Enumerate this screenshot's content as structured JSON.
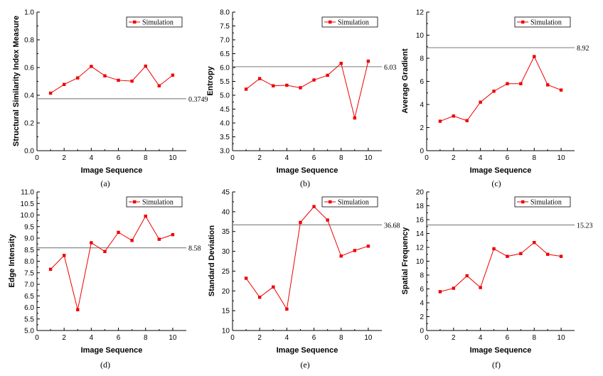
{
  "chart_data": [
    {
      "type": "line",
      "caption": "(a)",
      "xlabel": "Image Sequence",
      "ylabel": "Structural Similarity Index Measure",
      "xlim": [
        0,
        11
      ],
      "ylim": [
        0,
        1.0
      ],
      "xticks": [
        "0",
        "2",
        "4",
        "6",
        "8",
        "10"
      ],
      "yticks": [
        "0.0",
        "0.2",
        "0.4",
        "0.6",
        "0.8",
        "1.0"
      ],
      "x": [
        1,
        2,
        3,
        4,
        5,
        6,
        7,
        8,
        9,
        10
      ],
      "series": [
        {
          "name": "Simulation",
          "values": [
            0.415,
            0.478,
            0.525,
            0.608,
            0.54,
            0.508,
            0.502,
            0.61,
            0.468,
            0.545
          ],
          "color": "#ee0000"
        }
      ],
      "reference": {
        "value": 0.3749,
        "label": "0.3749",
        "color": "#888888"
      },
      "legend": "top-right"
    },
    {
      "type": "line",
      "caption": "(b)",
      "xlabel": "Image Sequence",
      "ylabel": "Entropy",
      "xlim": [
        0,
        11
      ],
      "ylim": [
        3.0,
        8.0
      ],
      "xticks": [
        "0",
        "2",
        "4",
        "6",
        "8",
        "10"
      ],
      "yticks": [
        "3.0",
        "3.5",
        "4.0",
        "4.5",
        "5.0",
        "5.5",
        "6.0",
        "6.5",
        "7.0",
        "7.5",
        "8.0"
      ],
      "x": [
        1,
        2,
        3,
        4,
        5,
        6,
        7,
        8,
        9,
        10
      ],
      "series": [
        {
          "name": "Simulation",
          "values": [
            5.22,
            5.6,
            5.34,
            5.36,
            5.27,
            5.55,
            5.72,
            6.15,
            4.18,
            6.23
          ],
          "color": "#ee0000"
        }
      ],
      "reference": {
        "value": 6.03,
        "label": "6.03",
        "color": "#888888"
      },
      "legend": "top-right"
    },
    {
      "type": "line",
      "caption": "(c)",
      "xlabel": "Image Sequence",
      "ylabel": "Average Gradient",
      "xlim": [
        0,
        11
      ],
      "ylim": [
        0,
        12
      ],
      "xticks": [
        "0",
        "2",
        "4",
        "6",
        "8",
        "10"
      ],
      "yticks": [
        "0",
        "2",
        "4",
        "6",
        "8",
        "10",
        "12"
      ],
      "x": [
        1,
        2,
        3,
        4,
        5,
        6,
        7,
        8,
        9,
        10
      ],
      "series": [
        {
          "name": "Simulation",
          "values": [
            2.55,
            3.0,
            2.6,
            4.2,
            5.15,
            5.8,
            5.8,
            8.15,
            5.7,
            5.25
          ],
          "color": "#ee0000"
        }
      ],
      "reference": {
        "value": 8.92,
        "label": "8.92",
        "color": "#888888"
      },
      "legend": "top-right"
    },
    {
      "type": "line",
      "caption": "(d)",
      "xlabel": "Image Sequence",
      "ylabel": "Edge Intensity",
      "xlim": [
        0,
        11
      ],
      "ylim": [
        5.0,
        11.0
      ],
      "xticks": [
        "0",
        "2",
        "4",
        "6",
        "8",
        "10"
      ],
      "yticks": [
        "5.0",
        "5.5",
        "6.0",
        "6.5",
        "7.0",
        "7.5",
        "8.0",
        "8.5",
        "9.0",
        "9.5",
        "10.0",
        "10.5",
        "11.0"
      ],
      "x": [
        1,
        2,
        3,
        4,
        5,
        6,
        7,
        8,
        9,
        10
      ],
      "series": [
        {
          "name": "Simulation",
          "values": [
            7.65,
            8.25,
            5.9,
            8.8,
            8.42,
            9.25,
            8.9,
            9.95,
            8.95,
            9.15
          ],
          "color": "#ee0000"
        }
      ],
      "reference": {
        "value": 8.58,
        "label": "8.58",
        "color": "#888888"
      },
      "legend": "top-right"
    },
    {
      "type": "line",
      "caption": "(e)",
      "xlabel": "Image Sequence",
      "ylabel": "Standard Deviation",
      "xlim": [
        0,
        11
      ],
      "ylim": [
        10,
        45
      ],
      "xticks": [
        "0",
        "2",
        "4",
        "6",
        "8",
        "10"
      ],
      "yticks": [
        "10",
        "15",
        "20",
        "25",
        "30",
        "35",
        "40",
        "45"
      ],
      "x": [
        1,
        2,
        3,
        4,
        5,
        6,
        7,
        8,
        9,
        10
      ],
      "series": [
        {
          "name": "Simulation",
          "values": [
            23.2,
            18.4,
            21.0,
            15.4,
            37.3,
            41.3,
            37.9,
            28.8,
            30.2,
            31.3
          ],
          "color": "#ee0000"
        }
      ],
      "reference": {
        "value": 36.68,
        "label": "36.68",
        "color": "#888888"
      },
      "legend": "top-right"
    },
    {
      "type": "line",
      "caption": "(f)",
      "xlabel": "Image Sequence",
      "ylabel": "Spatial Frequency",
      "xlim": [
        0,
        11
      ],
      "ylim": [
        0,
        20
      ],
      "xticks": [
        "0",
        "2",
        "4",
        "6",
        "8",
        "10"
      ],
      "yticks": [
        "0",
        "2",
        "4",
        "6",
        "8",
        "10",
        "12",
        "14",
        "16",
        "18",
        "20"
      ],
      "x": [
        1,
        2,
        3,
        4,
        5,
        6,
        7,
        8,
        9,
        10
      ],
      "series": [
        {
          "name": "Simulation",
          "values": [
            5.6,
            6.1,
            7.9,
            6.2,
            11.8,
            10.7,
            11.1,
            12.7,
            11.0,
            10.7
          ],
          "color": "#ee0000"
        }
      ],
      "reference": {
        "value": 15.23,
        "label": "15.23",
        "color": "#888888"
      },
      "legend": "top-right"
    }
  ]
}
